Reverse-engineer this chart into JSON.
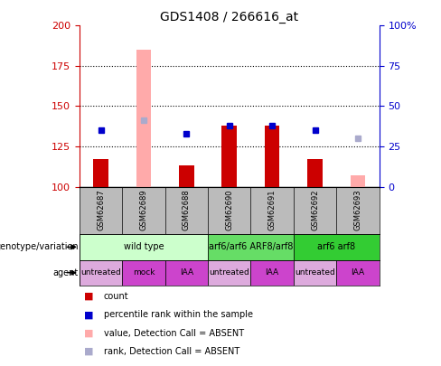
{
  "title": "GDS1408 / 266616_at",
  "samples": [
    "GSM62687",
    "GSM62689",
    "GSM62688",
    "GSM62690",
    "GSM62691",
    "GSM62692",
    "GSM62693"
  ],
  "count_values": [
    117,
    null,
    113,
    138,
    138,
    117,
    null
  ],
  "count_absent_values": [
    null,
    185,
    null,
    null,
    null,
    null,
    107
  ],
  "rank_values": [
    135,
    null,
    133,
    138,
    138,
    135,
    null
  ],
  "rank_absent_values": [
    null,
    141,
    null,
    null,
    null,
    null,
    130
  ],
  "ylim_left": [
    100,
    200
  ],
  "ylim_right": [
    0,
    100
  ],
  "yticks_left": [
    100,
    125,
    150,
    175,
    200
  ],
  "yticks_right": [
    0,
    25,
    50,
    75,
    100
  ],
  "ytick_labels_right": [
    "0",
    "25",
    "50",
    "75",
    "100%"
  ],
  "count_color": "#cc0000",
  "rank_color": "#0000cc",
  "count_absent_color": "#ffaaaa",
  "rank_absent_color": "#aaaacc",
  "sample_bg_color": "#bbbbbb",
  "genotype_groups": [
    {
      "label": "wild type",
      "span": [
        0,
        2
      ],
      "color": "#ccffcc"
    },
    {
      "label": "arf6/arf6 ARF8/arf8",
      "span": [
        3,
        4
      ],
      "color": "#66dd66"
    },
    {
      "label": "arf6 arf8",
      "span": [
        5,
        6
      ],
      "color": "#33cc33"
    }
  ],
  "agent_groups": [
    {
      "label": "untreated",
      "span": [
        0,
        0
      ],
      "color": "#ddaadd"
    },
    {
      "label": "mock",
      "span": [
        1,
        1
      ],
      "color": "#cc44cc"
    },
    {
      "label": "IAA",
      "span": [
        2,
        2
      ],
      "color": "#cc44cc"
    },
    {
      "label": "untreated",
      "span": [
        3,
        3
      ],
      "color": "#ddaadd"
    },
    {
      "label": "IAA",
      "span": [
        4,
        4
      ],
      "color": "#cc44cc"
    },
    {
      "label": "untreated",
      "span": [
        5,
        5
      ],
      "color": "#ddaadd"
    },
    {
      "label": "IAA",
      "span": [
        6,
        6
      ],
      "color": "#cc44cc"
    }
  ],
  "legend_items": [
    {
      "label": "count",
      "color": "#cc0000"
    },
    {
      "label": "percentile rank within the sample",
      "color": "#0000cc"
    },
    {
      "label": "value, Detection Call = ABSENT",
      "color": "#ffaaaa"
    },
    {
      "label": "rank, Detection Call = ABSENT",
      "color": "#aaaacc"
    }
  ],
  "left_axis_color": "#cc0000",
  "right_axis_color": "#0000cc",
  "background_color": "#ffffff"
}
